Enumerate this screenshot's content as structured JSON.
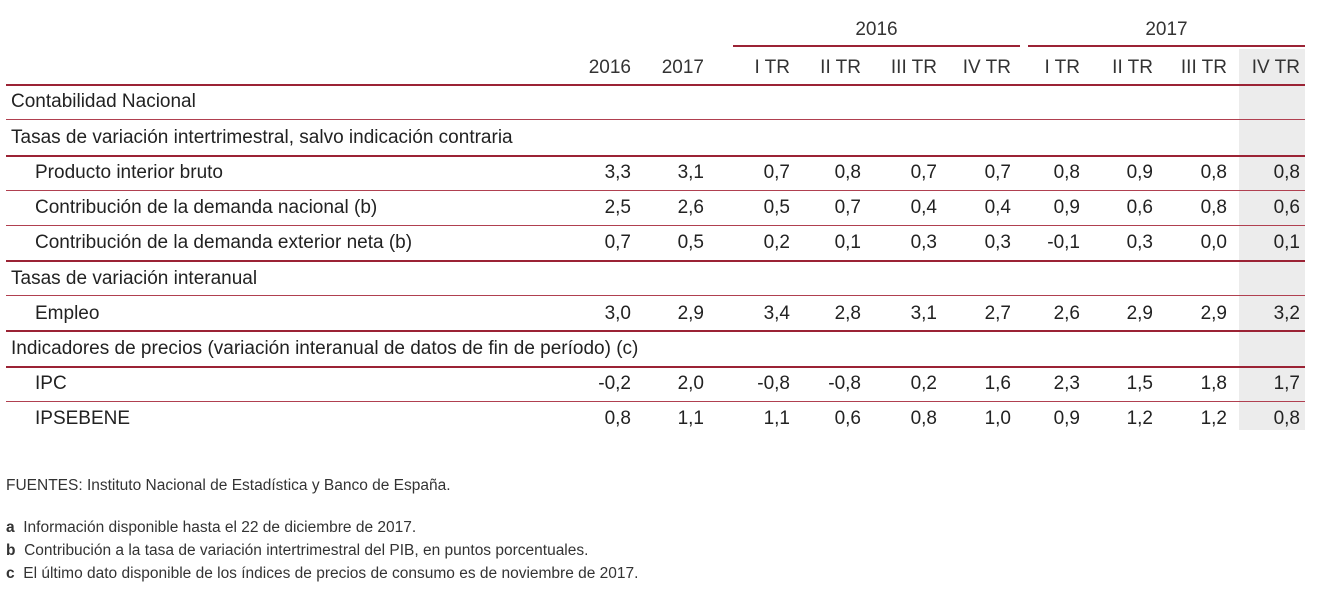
{
  "header": {
    "groups": [
      {
        "label": "2016"
      },
      {
        "label": "2017"
      }
    ],
    "columns": [
      "2016",
      "2017",
      "I TR",
      "II TR",
      "III TR",
      "IV TR",
      "I TR",
      "II TR",
      "III TR",
      "IV TR"
    ]
  },
  "rows": [
    {
      "type": "section",
      "label": "Contabilidad Nacional",
      "values": []
    },
    {
      "type": "section",
      "label": "Tasas de variación intertrimestral, salvo indicación contraria",
      "values": []
    },
    {
      "type": "item",
      "label": "Producto interior bruto",
      "values": [
        "3,3",
        "3,1",
        "0,7",
        "0,8",
        "0,7",
        "0,7",
        "0,8",
        "0,9",
        "0,8",
        "0,8"
      ]
    },
    {
      "type": "item",
      "label": "Contribución de la demanda nacional (b)",
      "values": [
        "2,5",
        "2,6",
        "0,5",
        "0,7",
        "0,4",
        "0,4",
        "0,9",
        "0,6",
        "0,8",
        "0,6"
      ]
    },
    {
      "type": "item",
      "label": "Contribución de la demanda exterior neta (b)",
      "values": [
        "0,7",
        "0,5",
        "0,2",
        "0,1",
        "0,3",
        "0,3",
        "-0,1",
        "0,3",
        "0,0",
        "0,1"
      ]
    },
    {
      "type": "section",
      "label": "Tasas de variación interanual",
      "values": []
    },
    {
      "type": "item",
      "label": "Empleo",
      "values": [
        "3,0",
        "2,9",
        "3,4",
        "2,8",
        "3,1",
        "2,7",
        "2,6",
        "2,9",
        "2,9",
        "3,2"
      ]
    },
    {
      "type": "section",
      "label": "Indicadores de precios (variación interanual de datos de fin de período) (c)",
      "values": []
    },
    {
      "type": "item",
      "label": "IPC",
      "values": [
        "-0,2",
        "2,0",
        "-0,8",
        "-0,8",
        "0,2",
        "1,6",
        "2,3",
        "1,5",
        "1,8",
        "1,7"
      ]
    },
    {
      "type": "item",
      "label": "IPSEBENE",
      "values": [
        "0,8",
        "1,1",
        "1,1",
        "0,6",
        "0,8",
        "1,0",
        "0,9",
        "1,2",
        "1,2",
        "0,8"
      ]
    }
  ],
  "footer": {
    "sources": "FUENTES: Instituto Nacional de Estadística y Banco de España.",
    "notes": [
      {
        "key": "a",
        "text": "Información disponible hasta el 22 de diciembre de 2017."
      },
      {
        "key": "b",
        "text": "Contribución a la tasa de variación intertrimestral del PIB, en puntos porcentuales."
      },
      {
        "key": "c",
        "text": "El último dato disponible de los índices de precios de consumo es de noviembre de 2017."
      }
    ]
  },
  "colors": {
    "rule": "#9b2335",
    "highlight_column": "#ececec"
  }
}
